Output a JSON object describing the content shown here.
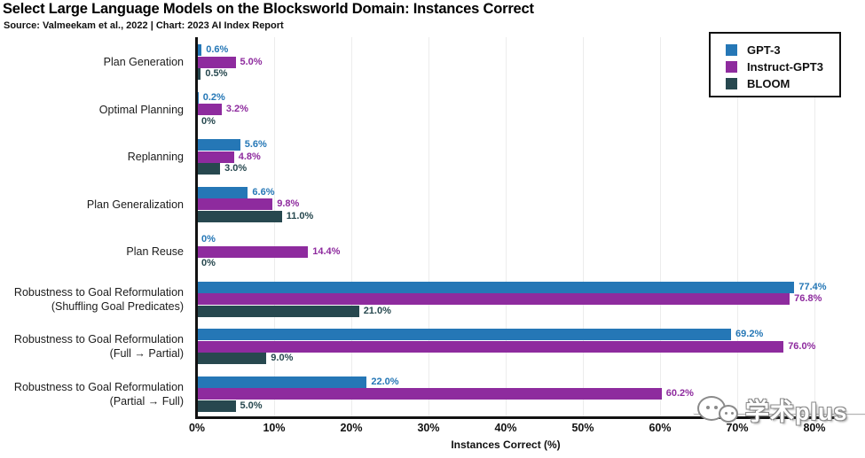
{
  "title": "Select Large Language Models on the Blocksworld Domain: Instances Correct",
  "subtitle": "Source: Valmeekam et al., 2022 | Chart: 2023 AI Index Report",
  "chart_data": {
    "type": "bar",
    "orientation": "horizontal",
    "title": "Select Large Language Models on the Blocksworld Domain: Instances Correct",
    "xlabel": "Instances Correct (%)",
    "xlim": [
      0,
      80
    ],
    "x_ticks": [
      "0%",
      "10%",
      "20%",
      "30%",
      "40%",
      "50%",
      "60%",
      "70%",
      "80%"
    ],
    "grid": "vertical-only",
    "legend_position": "top-right",
    "categories": [
      [
        "Plan Generation"
      ],
      [
        "Optimal Planning"
      ],
      [
        "Replanning"
      ],
      [
        "Plan Generalization"
      ],
      [
        "Plan Reuse"
      ],
      [
        "Robustness to Goal Reformulation",
        "(Shuffling Goal Predicates)"
      ],
      [
        "Robustness to Goal Reformulation",
        "(Full → Partial)"
      ],
      [
        "Robustness to Goal Reformulation",
        "(Partial → Full)"
      ]
    ],
    "series": [
      {
        "name": "GPT-3",
        "color": "#2577b6",
        "values": [
          0.6,
          0.2,
          5.6,
          6.6,
          0,
          77.4,
          69.2,
          22.0
        ],
        "labels": [
          "0.6%",
          "0.2%",
          "5.6%",
          "6.6%",
          "0%",
          "77.4%",
          "69.2%",
          "22.0%"
        ]
      },
      {
        "name": "Instruct-GPT3",
        "color": "#8e2b9e",
        "values": [
          5.0,
          3.2,
          4.8,
          9.8,
          14.4,
          76.8,
          76.0,
          60.2
        ],
        "labels": [
          "5.0%",
          "3.2%",
          "4.8%",
          "9.8%",
          "14.4%",
          "76.8%",
          "76.0%",
          "60.2%"
        ]
      },
      {
        "name": "BLOOM",
        "color": "#27484f",
        "values": [
          0.5,
          0,
          3.0,
          11.0,
          0,
          21.0,
          9.0,
          5.0
        ],
        "labels": [
          "0.5%",
          "0%",
          "3.0%",
          "11.0%",
          "0%",
          "21.0%",
          "9.0%",
          "5.0%"
        ]
      }
    ]
  },
  "watermark": {
    "text": "学术plus",
    "icon": "wechat-chat-bubbles"
  }
}
